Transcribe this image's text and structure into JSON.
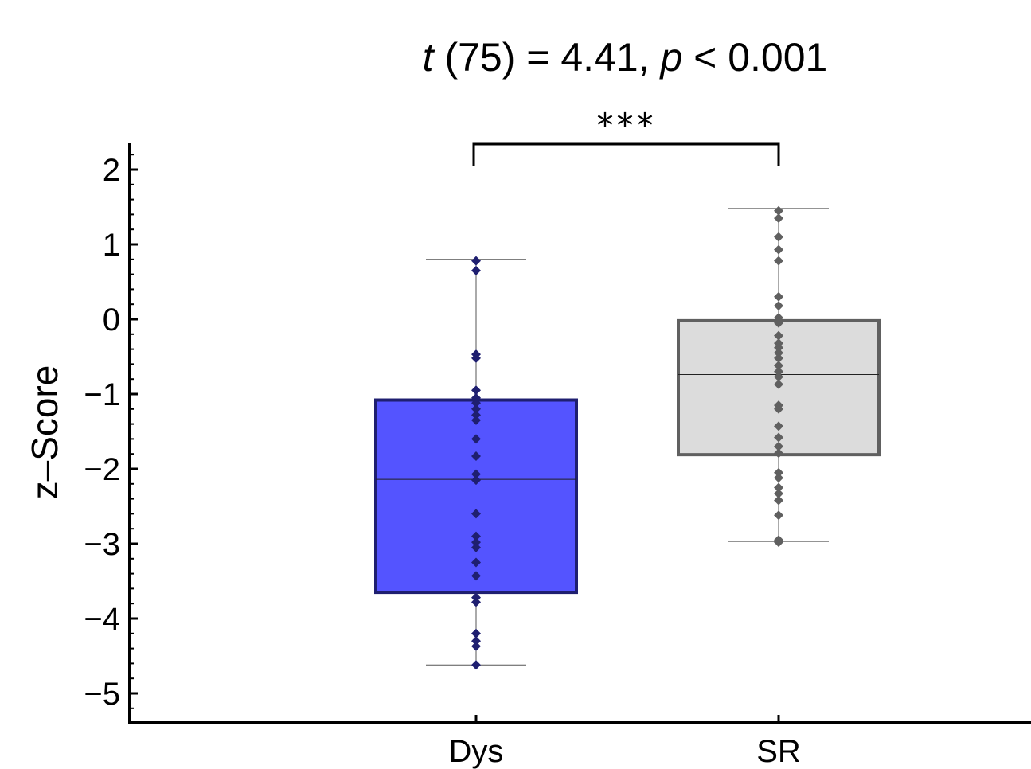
{
  "chart_data": {
    "type": "box",
    "title": {
      "t_symbol": "t",
      "df_text": " (75) = 4.41, ",
      "p_symbol": "p",
      "p_text": " < 0.001"
    },
    "ylabel": "z–Score",
    "xlabel": "",
    "ylim": [
      -5.4,
      2.3
    ],
    "yticks": [
      {
        "value": 2,
        "label": "2"
      },
      {
        "value": 1,
        "label": "1"
      },
      {
        "value": 0,
        "label": "0"
      },
      {
        "value": -1,
        "label": "−1"
      },
      {
        "value": -2,
        "label": "−2"
      },
      {
        "value": -3,
        "label": "−3"
      },
      {
        "value": -4,
        "label": "−4"
      },
      {
        "value": -5,
        "label": "−5"
      }
    ],
    "categories": [
      "Dys",
      "SR"
    ],
    "significance": {
      "label": "***",
      "between": [
        "Dys",
        "SR"
      ]
    },
    "series": [
      {
        "category": "Dys",
        "fill": "#5454ff",
        "stroke": "#1f1f70",
        "point_color": "#1f1f70",
        "whisker_low": -4.62,
        "q1": -3.65,
        "median": -2.14,
        "q3": -1.08,
        "whisker_high": 0.8,
        "points": [
          0.78,
          0.65,
          -0.47,
          -0.52,
          -0.95,
          -1.05,
          -1.12,
          -1.2,
          -1.28,
          -1.35,
          -1.6,
          -1.83,
          -2.07,
          -2.15,
          -2.6,
          -2.9,
          -2.98,
          -3.05,
          -3.25,
          -3.43,
          -3.72,
          -3.78,
          -4.2,
          -4.3,
          -4.37,
          -4.62
        ]
      },
      {
        "category": "SR",
        "fill": "#dcdcdc",
        "stroke": "#606060",
        "point_color": "#606060",
        "whisker_low": -2.97,
        "q1": -1.81,
        "median": -0.74,
        "q3": -0.02,
        "whisker_high": 1.48,
        "points": [
          1.45,
          1.35,
          1.1,
          0.93,
          0.78,
          0.3,
          0.18,
          0.02,
          -0.05,
          -0.22,
          -0.32,
          -0.38,
          -0.45,
          -0.52,
          -0.62,
          -0.7,
          -0.77,
          -0.87,
          -1.15,
          -1.2,
          -1.43,
          -1.58,
          -1.7,
          -1.79,
          -2.05,
          -2.12,
          -2.25,
          -2.33,
          -2.42,
          -2.62,
          -2.95,
          -2.98
        ]
      }
    ]
  }
}
